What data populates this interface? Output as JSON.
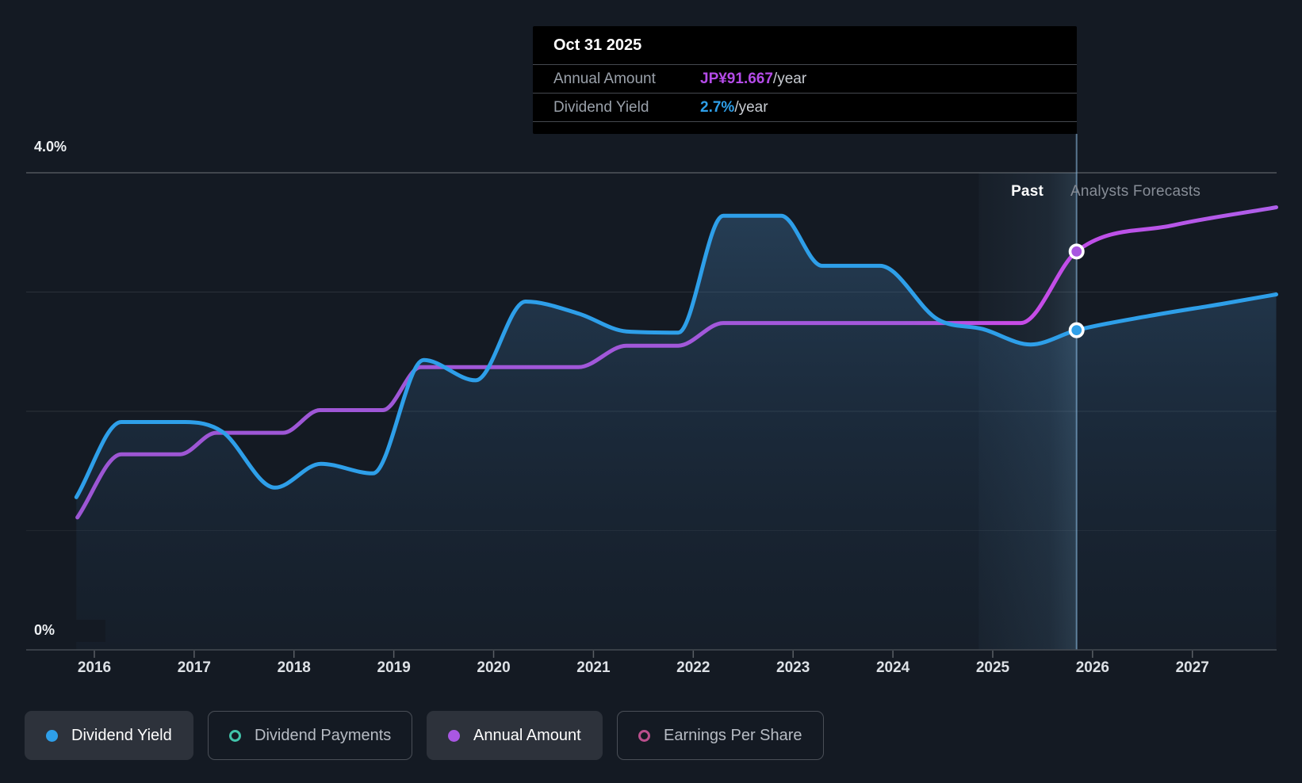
{
  "tooltip": {
    "date": "Oct 31 2025",
    "rows": [
      {
        "label": "Annual Amount",
        "value": "JP¥91.667",
        "suffix": "/year",
        "color": "#b44be8"
      },
      {
        "label": "Dividend Yield",
        "value": "2.7%",
        "suffix": "/year",
        "color": "#2e9fe9"
      }
    ]
  },
  "chart": {
    "y_top_label": "4.0%",
    "y_bottom_label": "0%",
    "past_label": "Past",
    "forecast_label": "Analysts Forecasts"
  },
  "legend": [
    {
      "label": "Dividend Yield",
      "marker": "filled",
      "color": "#2e9fe9",
      "active": true
    },
    {
      "label": "Dividend Payments",
      "marker": "ring",
      "color": "#41c3aa",
      "active": false
    },
    {
      "label": "Annual Amount",
      "marker": "filled",
      "color": "#a957e3",
      "active": true
    },
    {
      "label": "Earnings Per Share",
      "marker": "ring",
      "color": "#ba4f8c",
      "active": false
    }
  ],
  "chart_data": {
    "type": "area",
    "title": "Dividend history and forecast",
    "x_axis": {
      "ticks": [
        2016,
        2017,
        2018,
        2019,
        2020,
        2021,
        2022,
        2023,
        2024,
        2025,
        2026,
        2027
      ],
      "tick_labels": [
        "2016",
        "2017",
        "2018",
        "2019",
        "2020",
        "2021",
        "2022",
        "2023",
        "2024",
        "2025",
        "2026",
        "2027"
      ],
      "range": [
        2015.32,
        2027.84
      ]
    },
    "y_axis": {
      "range": [
        0,
        4
      ],
      "unit": "%",
      "gridlines": [
        1,
        2,
        3,
        4
      ],
      "top_label": "4.0%",
      "bottom_label": "0%"
    },
    "today": {
      "x": 2025.84,
      "date": "Oct 31 2025",
      "band_start": 2024.86
    },
    "series": [
      {
        "name": "Dividend Yield",
        "color": "#2e9fe9",
        "area": true,
        "marker": {
          "x": 2025.84,
          "y": 2.68,
          "display": "2.7%/year"
        },
        "points": [
          [
            2015.82,
            1.28
          ],
          [
            2016.27,
            1.91
          ],
          [
            2016.91,
            1.91
          ],
          [
            2017.28,
            1.83
          ],
          [
            2017.81,
            1.36
          ],
          [
            2018.27,
            1.56
          ],
          [
            2018.79,
            1.48
          ],
          [
            2019.3,
            2.43
          ],
          [
            2019.82,
            2.26
          ],
          [
            2020.32,
            2.92
          ],
          [
            2020.85,
            2.82
          ],
          [
            2021.33,
            2.67
          ],
          [
            2021.85,
            2.66
          ],
          [
            2022.3,
            3.64
          ],
          [
            2022.88,
            3.64
          ],
          [
            2023.29,
            3.22
          ],
          [
            2023.87,
            3.22
          ],
          [
            2024.45,
            2.77
          ],
          [
            2024.9,
            2.69
          ],
          [
            2025.38,
            2.56
          ],
          [
            2025.84,
            2.68
          ],
          [
            2026.57,
            2.8
          ],
          [
            2027.29,
            2.9
          ],
          [
            2027.84,
            2.98
          ]
        ]
      },
      {
        "name": "Annual Amount",
        "color": "#a957e3",
        "area": false,
        "note": "Plotted on a separate JP¥ scale; values below are visual positions on the % axis. Value at marker: JP¥91.667/year",
        "marker": {
          "x": 2025.84,
          "y": 3.34,
          "display": "JP¥91.667/year"
        },
        "points": [
          [
            2015.83,
            1.11
          ],
          [
            2016.27,
            1.64
          ],
          [
            2016.86,
            1.64
          ],
          [
            2017.22,
            1.82
          ],
          [
            2017.89,
            1.82
          ],
          [
            2018.26,
            2.01
          ],
          [
            2018.89,
            2.01
          ],
          [
            2019.27,
            2.37
          ],
          [
            2020.85,
            2.37
          ],
          [
            2021.33,
            2.55
          ],
          [
            2021.85,
            2.55
          ],
          [
            2022.3,
            2.74
          ],
          [
            2025.28,
            2.74
          ],
          [
            2025.84,
            3.34
          ],
          [
            2026.81,
            3.56
          ],
          [
            2027.84,
            3.71
          ]
        ]
      }
    ],
    "legend_position": "bottom",
    "grid": true
  }
}
